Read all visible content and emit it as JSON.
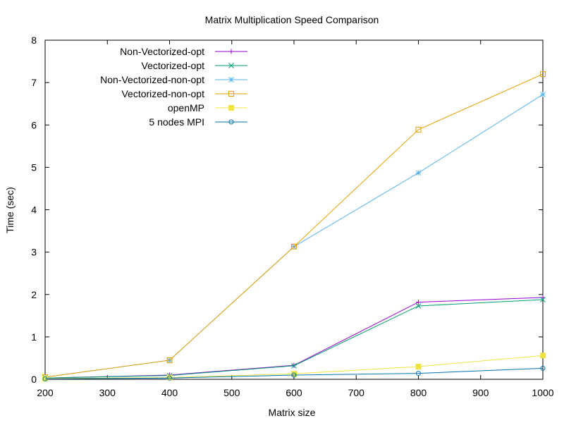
{
  "chart_data": {
    "type": "line",
    "title": "Matrix Multiplication Speed Comparison",
    "xlabel": "Matrix size",
    "ylabel": "Time (sec)",
    "xlim": [
      200,
      1000
    ],
    "ylim": [
      0,
      8
    ],
    "xticks": [
      200,
      300,
      400,
      500,
      600,
      700,
      800,
      900,
      1000
    ],
    "yticks": [
      0,
      1,
      2,
      3,
      4,
      5,
      6,
      7,
      8
    ],
    "grid": false,
    "legend_position": "top-left",
    "x": [
      200,
      400,
      600,
      800,
      1000
    ],
    "series": [
      {
        "name": "Non-Vectorized-opt",
        "values": [
          0.03,
          0.1,
          0.33,
          1.82,
          1.93
        ],
        "color": "#9400d3",
        "marker": "plus"
      },
      {
        "name": "Vectorized-opt",
        "values": [
          0.03,
          0.09,
          0.32,
          1.73,
          1.88
        ],
        "color": "#009e73",
        "marker": "cross"
      },
      {
        "name": "Non-Vectorized-non-opt",
        "values": [
          0.05,
          0.45,
          3.13,
          4.87,
          6.72
        ],
        "color": "#56b4e9",
        "marker": "star"
      },
      {
        "name": "Vectorized-non-opt",
        "values": [
          0.05,
          0.45,
          3.13,
          5.89,
          7.2
        ],
        "color": "#e69f00",
        "marker": "square-open"
      },
      {
        "name": "openMP",
        "values": [
          0.02,
          0.04,
          0.13,
          0.3,
          0.56
        ],
        "color": "#f0e442",
        "marker": "square-filled"
      },
      {
        "name": "5 nodes MPI",
        "values": [
          0.01,
          0.03,
          0.1,
          0.14,
          0.26
        ],
        "color": "#0072b2",
        "marker": "circle-open"
      }
    ]
  }
}
